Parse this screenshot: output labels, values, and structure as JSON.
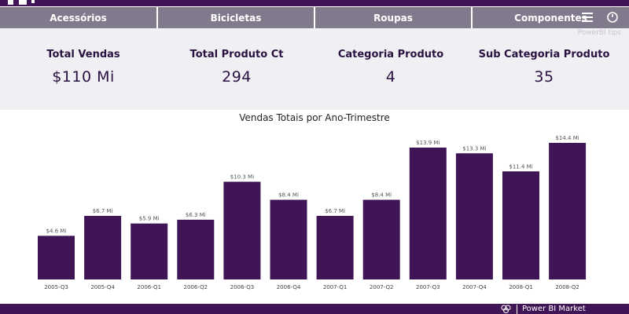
{
  "tabs": [
    {
      "label": "Acessórios"
    },
    {
      "label": "Bicicletas"
    },
    {
      "label": "Roupas"
    },
    {
      "label": "Componentes"
    }
  ],
  "header_icons": [
    "menu-icon",
    "circle-icon"
  ],
  "watermark": "PowerBI tips",
  "kpis": [
    {
      "label": "Total Vendas",
      "value": "$110 Mi"
    },
    {
      "label": "Total Produto Ct",
      "value": "294"
    },
    {
      "label": "Categoria Produto",
      "value": "4"
    },
    {
      "label": "Sub Categoria Produto",
      "value": "35"
    }
  ],
  "chart_data": {
    "type": "bar",
    "title": "Vendas Totais por Ano-Trimestre",
    "xlabel": "",
    "ylabel": "",
    "categories": [
      "2005-Q3",
      "2005-Q4",
      "2006-Q1",
      "2006-Q2",
      "2006-Q3",
      "2006-Q4",
      "2007-Q1",
      "2007-Q2",
      "2007-Q3",
      "2007-Q4",
      "2008-Q1",
      "2008-Q2"
    ],
    "values": [
      4.6,
      6.7,
      5.9,
      6.3,
      10.3,
      8.4,
      6.7,
      8.4,
      13.9,
      13.3,
      11.4,
      14.4
    ],
    "data_labels": [
      "$4.6 Mi",
      "$6.7 Mi",
      "$5.9 Mi",
      "$6.3 Mi",
      "$10.3 Mi",
      "$8.4 Mi",
      "$6.7 Mi",
      "$8.4 Mi",
      "$13.9 Mi",
      "$13.3 Mi",
      "$11.4 Mi",
      "$14.4 Mi"
    ],
    "ylim": [
      0,
      14.4
    ],
    "grid": false,
    "legend": "none",
    "bar_color": "#3f1555"
  },
  "footer": {
    "text": "Power BI Market"
  },
  "colors": {
    "brand": "#3f1555",
    "tab": "#807a8c",
    "kpi_band": "#f0eff4"
  }
}
